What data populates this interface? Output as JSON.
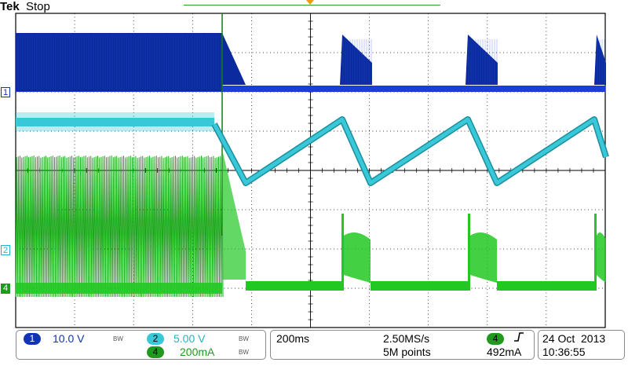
{
  "header": {
    "brand": "Tek",
    "status": "Stop"
  },
  "channels": {
    "ch1": {
      "number": "1",
      "scale": "10.0 V",
      "bw": "BW",
      "color": "#1033b8"
    },
    "ch2": {
      "number": "2",
      "scale": "5.00 V",
      "bw": "BW",
      "color": "#22b3c9"
    },
    "ch4": {
      "number": "4",
      "scale": "200mA",
      "bw": "BW",
      "color": "#1f9a1f"
    }
  },
  "timebase": {
    "horizontal_scale": "200ms",
    "sample_rate": "2.50MS/s",
    "record_length": "5M points"
  },
  "trigger": {
    "source": "4",
    "slope_icon": "rising-edge-icon",
    "level": "492mA",
    "color": "#f29a10"
  },
  "datetime": {
    "date": "24 Oct  2013",
    "time": "10:36:55"
  },
  "colors": {
    "trace_ch1": "#0a2a9e",
    "trace_ch2": "#38c8d8",
    "trace_ch4": "#22c822",
    "graticule": "#000000"
  }
}
